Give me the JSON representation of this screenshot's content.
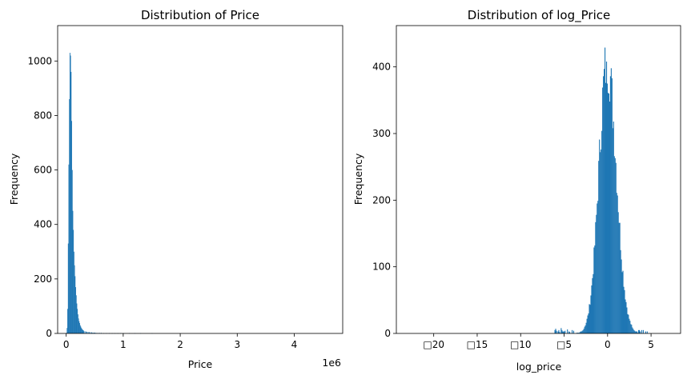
{
  "chart_data": [
    {
      "type": "bar",
      "title": "Distribution of Price",
      "xlabel": "Price",
      "ylabel": "Frequency",
      "offset_label": "1e6",
      "color": "#1f77b4",
      "xlim": [
        -0.15,
        4.85
      ],
      "ylim": [
        0,
        1130
      ],
      "xticks": [
        0,
        1,
        2,
        3,
        4
      ],
      "xtick_labels": [
        "0",
        "1",
        "2",
        "3",
        "4"
      ],
      "yticks": [
        0,
        200,
        400,
        600,
        800,
        1000
      ],
      "ytick_labels": [
        "0",
        "200",
        "400",
        "600",
        "800",
        "1000"
      ],
      "bin_width": 0.01,
      "bins_x": [
        0.0,
        0.01,
        0.02,
        0.03,
        0.04,
        0.05,
        0.06,
        0.07,
        0.08,
        0.09,
        0.1,
        0.11,
        0.12,
        0.13,
        0.14,
        0.15,
        0.16,
        0.17,
        0.18,
        0.19,
        0.2,
        0.21,
        0.22,
        0.23,
        0.24,
        0.25,
        0.26,
        0.27,
        0.28,
        0.29,
        0.3,
        0.32,
        0.34,
        0.36,
        0.38,
        0.4,
        0.42,
        0.44,
        0.46,
        0.48,
        0.5,
        0.52,
        0.55,
        0.58,
        0.61,
        0.65,
        0.7,
        0.75,
        0.8,
        0.85,
        0.9,
        0.95,
        1.0,
        1.1,
        1.2,
        1.3,
        1.5
      ],
      "bins_count": [
        2,
        20,
        90,
        330,
        620,
        860,
        1030,
        1020,
        960,
        780,
        600,
        450,
        380,
        300,
        250,
        210,
        170,
        140,
        110,
        90,
        70,
        55,
        45,
        38,
        30,
        25,
        20,
        17,
        14,
        12,
        10,
        8,
        7,
        6,
        5,
        5,
        4,
        4,
        3,
        3,
        3,
        2,
        2,
        2,
        2,
        1,
        1,
        1,
        1,
        1,
        1,
        1,
        1,
        1,
        1,
        1,
        1
      ]
    },
    {
      "type": "bar",
      "title": "Distribution of log_Price",
      "xlabel": "log_price",
      "ylabel": "Frequency",
      "color": "#1f77b4",
      "xlim": [
        -24.3,
        8.4
      ],
      "ylim": [
        0,
        462
      ],
      "xticks": [
        -20,
        -15,
        -10,
        -5,
        0,
        5
      ],
      "xtick_labels": [
        "□20",
        "□15",
        "□10",
        "□5",
        "0",
        "5"
      ],
      "yticks": [
        0,
        100,
        200,
        300,
        400
      ],
      "ytick_labels": [
        "0",
        "100",
        "200",
        "300",
        "400"
      ],
      "bin_width": 0.09,
      "mode_x": -0.1,
      "peak": 408,
      "sigma_left": 0.95,
      "sigma_right": 1.05,
      "range": [
        -6.2,
        4.6
      ]
    }
  ]
}
